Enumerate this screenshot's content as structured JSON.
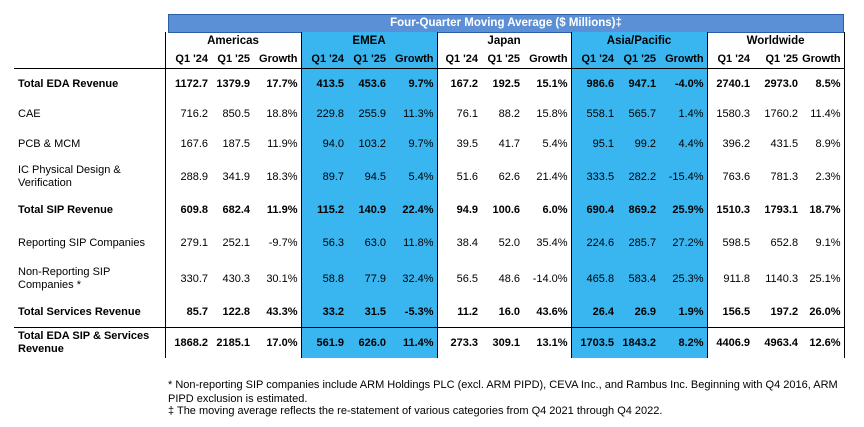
{
  "banner": "Four-Quarter Moving Average ($ Millions)‡",
  "regions": [
    "Americas",
    "EMEA",
    "Japan",
    "Asia/Pacific",
    "Worldwide"
  ],
  "col_labels": [
    "Q1 '24",
    "Q1 '25",
    "Growth"
  ],
  "rows": [
    {
      "label": "Total EDA Revenue",
      "bold": true,
      "values": [
        "1172.7",
        "1379.9",
        "17.7%",
        "413.5",
        "453.6",
        "9.7%",
        "167.2",
        "192.5",
        "15.1%",
        "986.6",
        "947.1",
        "-4.0%",
        "2740.1",
        "2973.0",
        "8.5%"
      ]
    },
    {
      "label": "CAE",
      "bold": false,
      "values": [
        "716.2",
        "850.5",
        "18.8%",
        "229.8",
        "255.9",
        "11.3%",
        "76.1",
        "88.2",
        "15.8%",
        "558.1",
        "565.7",
        "1.4%",
        "1580.3",
        "1760.2",
        "11.4%"
      ]
    },
    {
      "label": "PCB & MCM",
      "bold": false,
      "values": [
        "167.6",
        "187.5",
        "11.9%",
        "94.0",
        "103.2",
        "9.7%",
        "39.5",
        "41.7",
        "5.4%",
        "95.1",
        "99.2",
        "4.4%",
        "396.2",
        "431.5",
        "8.9%"
      ]
    },
    {
      "label": "IC Physical Design & Verification",
      "bold": false,
      "values": [
        "288.9",
        "341.9",
        "18.3%",
        "89.7",
        "94.5",
        "5.4%",
        "51.6",
        "62.6",
        "21.4%",
        "333.5",
        "282.2",
        "-15.4%",
        "763.6",
        "781.3",
        "2.3%"
      ]
    },
    {
      "label": "Total SIP Revenue",
      "bold": true,
      "values": [
        "609.8",
        "682.4",
        "11.9%",
        "115.2",
        "140.9",
        "22.4%",
        "94.9",
        "100.6",
        "6.0%",
        "690.4",
        "869.2",
        "25.9%",
        "1510.3",
        "1793.1",
        "18.7%"
      ]
    },
    {
      "label": "Reporting SIP Companies",
      "bold": false,
      "values": [
        "279.1",
        "252.1",
        "-9.7%",
        "56.3",
        "63.0",
        "11.8%",
        "38.4",
        "52.0",
        "35.4%",
        "224.6",
        "285.7",
        "27.2%",
        "598.5",
        "652.8",
        "9.1%"
      ]
    },
    {
      "label": "Non-Reporting SIP Companies *",
      "bold": false,
      "values": [
        "330.7",
        "430.3",
        "30.1%",
        "58.8",
        "77.9",
        "32.4%",
        "56.5",
        "48.6",
        "-14.0%",
        "465.8",
        "583.4",
        "25.3%",
        "911.8",
        "1140.3",
        "25.1%"
      ]
    },
    {
      "label": "Total Services Revenue",
      "bold": true,
      "values": [
        "85.7",
        "122.8",
        "43.3%",
        "33.2",
        "31.5",
        "-5.3%",
        "11.2",
        "16.0",
        "43.6%",
        "26.4",
        "26.9",
        "1.9%",
        "156.5",
        "197.2",
        "26.0%"
      ]
    },
    {
      "label": "Total EDA SIP & Services Revenue",
      "bold": true,
      "values": [
        "1868.2",
        "2185.1",
        "17.0%",
        "561.9",
        "626.0",
        "11.4%",
        "273.3",
        "309.1",
        "13.1%",
        "1703.5",
        "1843.2",
        "8.2%",
        "4406.9",
        "4963.4",
        "12.6%"
      ]
    }
  ],
  "footnotes": [
    "* Non-reporting SIP companies include ARM Holdings PLC (excl. ARM PIPD), CEVA Inc., and Rambus Inc. Beginning with Q4 2016, ARM PIPD exclusion is estimated.",
    "‡ The moving average reflects the re-statement of various categories from Q4 2021 through Q4 2022."
  ]
}
